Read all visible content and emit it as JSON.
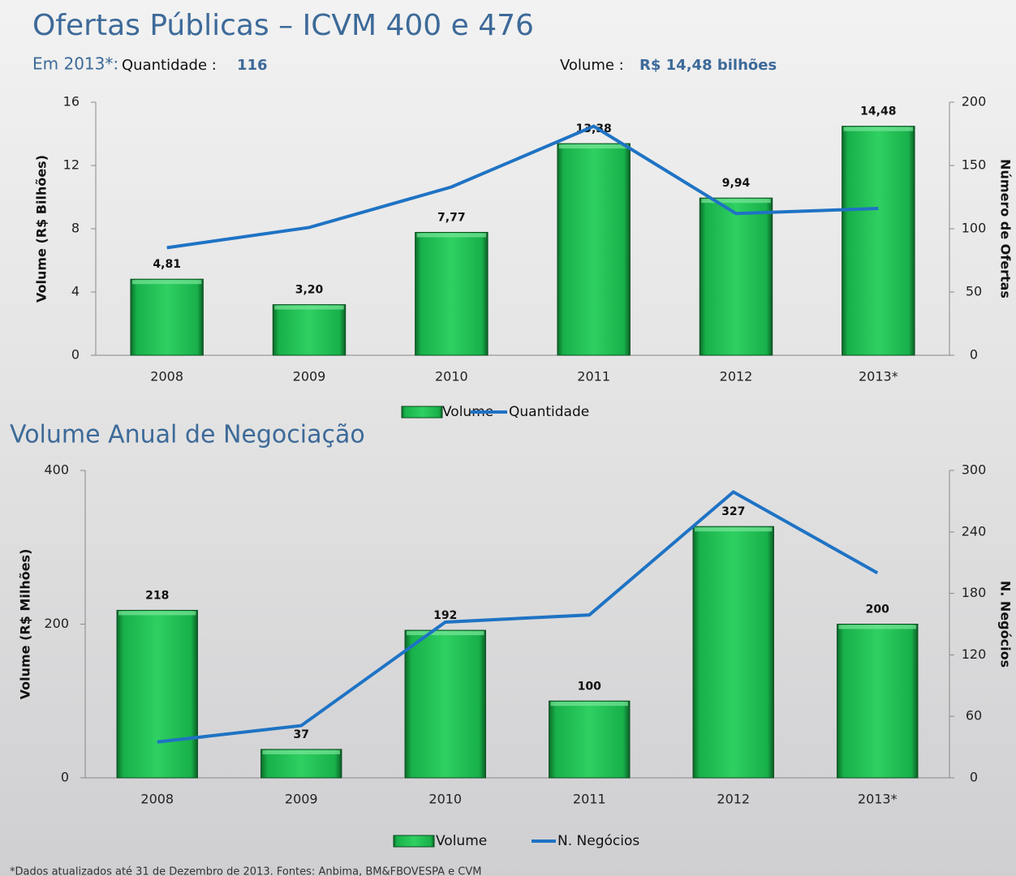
{
  "header": {
    "title": "Ofertas Públicas – ICVM 400 e 476",
    "period": "Em 2013*:",
    "count_label": "Quantidade :",
    "count_value": "116",
    "volume_label": "Volume :",
    "volume_value": "R$ 14,48 bilhões"
  },
  "chart_data": [
    {
      "type": "bar",
      "categories": [
        "2008",
        "2009",
        "2010",
        "2011",
        "2012",
        "2013*"
      ],
      "ylabel": "Volume (R$ Bilhões)",
      "y2label": "Número de Ofertas",
      "ylim": [
        0,
        16
      ],
      "yticks": [
        0,
        4,
        8,
        12,
        16
      ],
      "y2lim": [
        0,
        200
      ],
      "y2ticks": [
        0,
        50,
        100,
        150,
        200
      ],
      "series": [
        {
          "name": "Volume",
          "type": "bar",
          "color": "#1fbf4f",
          "values": [
            4.81,
            3.2,
            7.77,
            13.38,
            9.94,
            14.48
          ],
          "value_labels": [
            "4,81",
            "3,20",
            "7,77",
            "13,38",
            "9,94",
            "14,48"
          ]
        },
        {
          "name": "Quantidade",
          "type": "line",
          "axis": "y2",
          "color": "#1f73c4",
          "values": [
            85,
            101,
            133,
            181,
            112,
            116
          ]
        }
      ]
    },
    {
      "type": "bar",
      "title": "Volume Anual de Negociação",
      "categories": [
        "2008",
        "2009",
        "2010",
        "2011",
        "2012",
        "2013*"
      ],
      "ylabel": "Volume (R$ Milhões)",
      "y2label": "N. Negócios",
      "ylim": [
        0,
        400
      ],
      "yticks": [
        0,
        200,
        400
      ],
      "y2lim": [
        0,
        300
      ],
      "y2ticks": [
        0,
        60,
        120,
        180,
        240,
        300
      ],
      "series": [
        {
          "name": "Volume",
          "type": "bar",
          "color": "#1fbf4f",
          "values": [
            218,
            37,
            192,
            100,
            327,
            200
          ]
        },
        {
          "name": "N. Negócios",
          "type": "line",
          "axis": "y2",
          "color": "#1f73c4",
          "values": [
            35,
            51,
            152,
            159,
            279,
            200
          ]
        }
      ]
    }
  ],
  "footnote": "*Dados atualizados até 31 de Dezembro de 2013. Fontes: Anbima, BM&FBOVESPA e CVM"
}
